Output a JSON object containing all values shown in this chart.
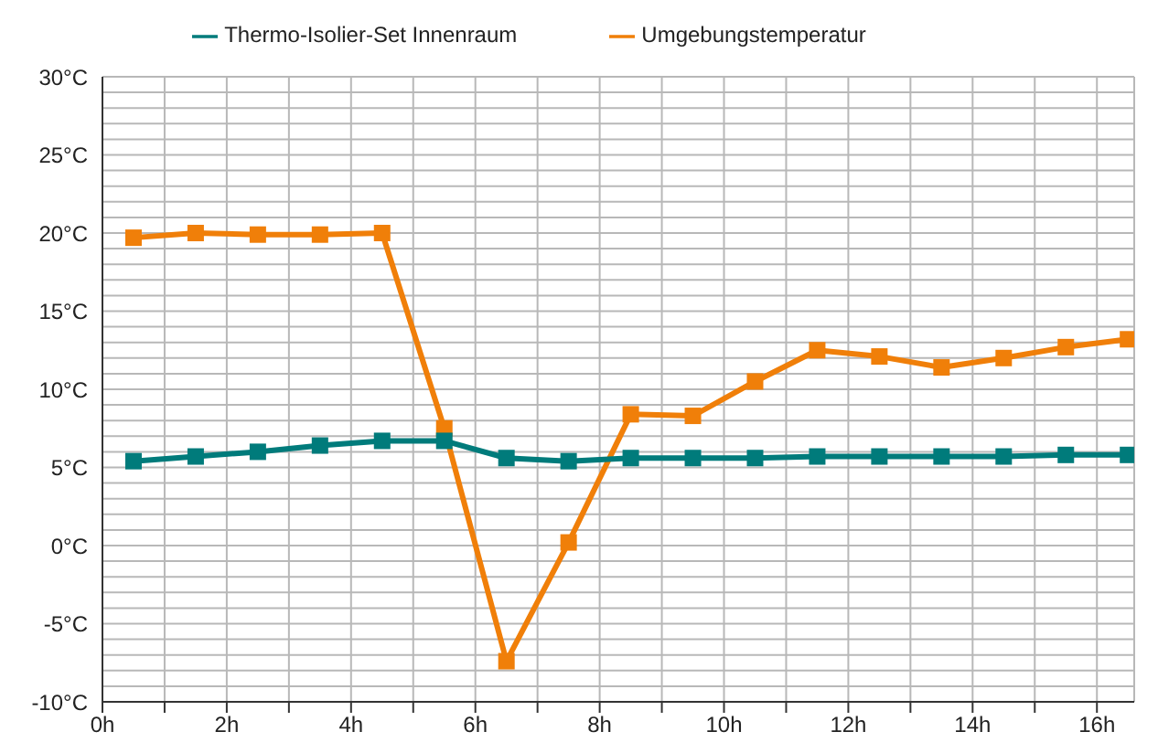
{
  "chart_data": {
    "type": "line",
    "x": [
      0.5,
      1.5,
      2.5,
      3.5,
      4.5,
      5.5,
      6.5,
      7.5,
      8.5,
      9.5,
      10.5,
      11.5,
      12.5,
      13.5,
      14.5,
      15.5,
      16.5
    ],
    "series": [
      {
        "name": "Umgebungstemperatur",
        "color": "#f07f09",
        "values": [
          19.7,
          20.0,
          19.9,
          19.9,
          20.0,
          7.5,
          -7.4,
          0.2,
          8.4,
          8.3,
          10.5,
          12.5,
          12.1,
          11.4,
          12.0,
          12.7,
          13.2
        ]
      },
      {
        "name": "Thermo-Isolier-Set Innenraum",
        "color": "#007b7b",
        "values": [
          5.4,
          5.7,
          6.0,
          6.4,
          6.7,
          6.7,
          5.6,
          5.4,
          5.6,
          5.6,
          5.6,
          5.7,
          5.7,
          5.7,
          5.7,
          5.8,
          5.8
        ]
      }
    ],
    "xlim": [
      0,
      16.6
    ],
    "xticks": [
      {
        "value": 0,
        "label": "0h"
      },
      {
        "value": 1,
        "label": null
      },
      {
        "value": 2,
        "label": "2h"
      },
      {
        "value": 3,
        "label": null
      },
      {
        "value": 4,
        "label": "4h"
      },
      {
        "value": 5,
        "label": null
      },
      {
        "value": 6,
        "label": "6h"
      },
      {
        "value": 7,
        "label": null
      },
      {
        "value": 8,
        "label": "8h"
      },
      {
        "value": 9,
        "label": null
      },
      {
        "value": 10,
        "label": "10h"
      },
      {
        "value": 11,
        "label": null
      },
      {
        "value": 12,
        "label": "12h"
      },
      {
        "value": 13,
        "label": null
      },
      {
        "value": 14,
        "label": "14h"
      },
      {
        "value": 15,
        "label": null
      },
      {
        "value": 16,
        "label": "16h"
      }
    ],
    "ylim": [
      -10,
      30
    ],
    "yticks": [
      {
        "value": -10,
        "label": "-10°C"
      },
      {
        "value": -9,
        "label": null
      },
      {
        "value": -8,
        "label": null
      },
      {
        "value": -7,
        "label": null
      },
      {
        "value": -6,
        "label": null
      },
      {
        "value": -5,
        "label": "-5°C"
      },
      {
        "value": -4,
        "label": null
      },
      {
        "value": -3,
        "label": null
      },
      {
        "value": -2,
        "label": null
      },
      {
        "value": -1,
        "label": null
      },
      {
        "value": 0,
        "label": "0°C"
      },
      {
        "value": 1,
        "label": null
      },
      {
        "value": 2,
        "label": null
      },
      {
        "value": 3,
        "label": null
      },
      {
        "value": 4,
        "label": null
      },
      {
        "value": 5,
        "label": "5°C"
      },
      {
        "value": 6,
        "label": null
      },
      {
        "value": 7,
        "label": null
      },
      {
        "value": 8,
        "label": null
      },
      {
        "value": 9,
        "label": null
      },
      {
        "value": 10,
        "label": "10°C"
      },
      {
        "value": 11,
        "label": null
      },
      {
        "value": 12,
        "label": null
      },
      {
        "value": 13,
        "label": null
      },
      {
        "value": 14,
        "label": null
      },
      {
        "value": 15,
        "label": "15°C"
      },
      {
        "value": 16,
        "label": null
      },
      {
        "value": 17,
        "label": null
      },
      {
        "value": 18,
        "label": null
      },
      {
        "value": 19,
        "label": null
      },
      {
        "value": 20,
        "label": "20°C"
      },
      {
        "value": 21,
        "label": null
      },
      {
        "value": 22,
        "label": null
      },
      {
        "value": 23,
        "label": null
      },
      {
        "value": 24,
        "label": null
      },
      {
        "value": 25,
        "label": "25°C"
      },
      {
        "value": 26,
        "label": null
      },
      {
        "value": 27,
        "label": null
      },
      {
        "value": 28,
        "label": null
      },
      {
        "value": 29,
        "label": null
      },
      {
        "value": 30,
        "label": "30°C"
      }
    ],
    "grid": true,
    "legend": "top",
    "marker": "square",
    "line_style": "solid"
  }
}
